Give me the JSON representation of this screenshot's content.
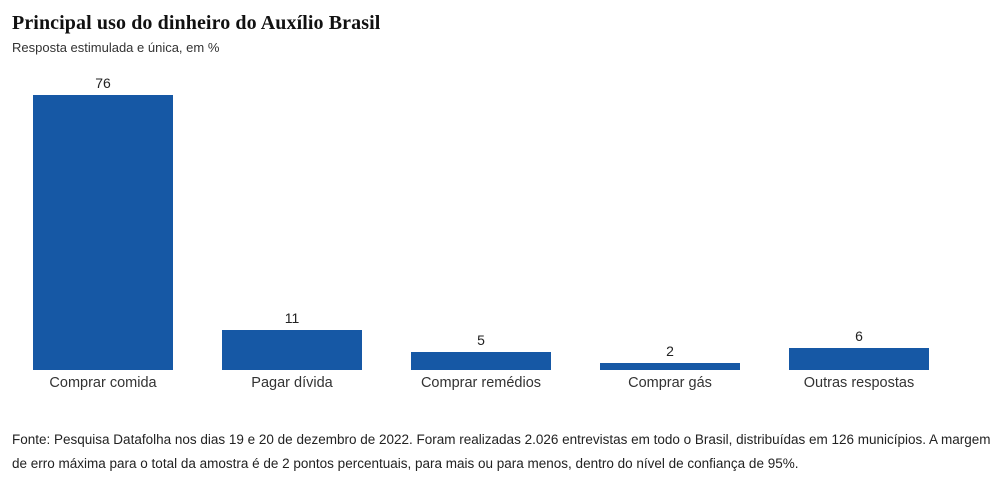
{
  "header": {
    "title": "Principal uso do dinheiro do Auxílio Brasil",
    "subtitle": "Resposta estimulada e única, em %"
  },
  "chart_data": {
    "type": "bar",
    "title": "Principal uso do dinheiro do Auxílio Brasil",
    "subtitle": "Resposta estimulada e única, em %",
    "categories": [
      "Comprar comida",
      "Pagar dívida",
      "Comprar remédios",
      "Comprar gás",
      "Outras respostas"
    ],
    "values": [
      76,
      11,
      5,
      2,
      6
    ],
    "xlabel": "",
    "ylabel": "",
    "ylim": [
      0,
      76
    ],
    "unit": "%",
    "grid": false,
    "legend": "none",
    "value_labels_shown": true,
    "bar_color": "#1658a5",
    "label_color": "#333333"
  },
  "footer": {
    "source_note": "Fonte: Pesquisa Datafolha nos dias 19 e 20 de dezembro de 2022. Foram realizadas 2.026 entrevistas em todo o Brasil, distribuídas em 126 municípios. A margem de erro máxima para o total da amostra é de 2 pontos percentuais, para mais ou para menos, dentro do nível de confiança de 95%."
  }
}
